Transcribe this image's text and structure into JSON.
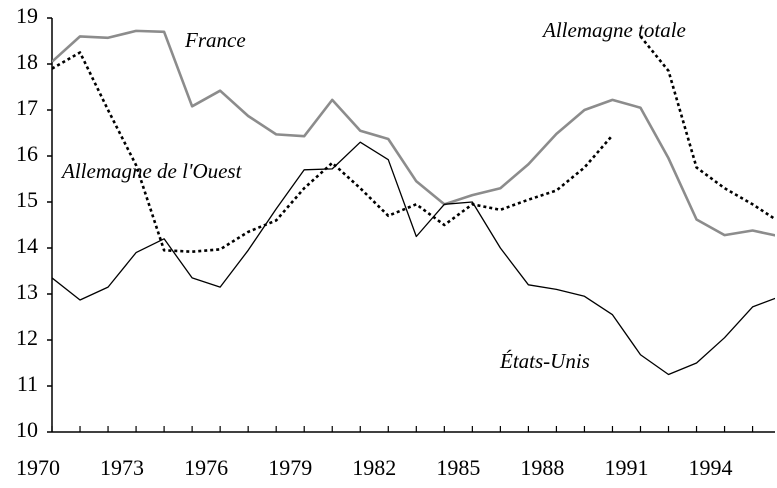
{
  "chart_data": {
    "type": "line",
    "x": [
      1970,
      1971,
      1972,
      1973,
      1974,
      1975,
      1976,
      1977,
      1978,
      1979,
      1980,
      1981,
      1982,
      1983,
      1984,
      1985,
      1986,
      1987,
      1988,
      1989,
      1990,
      1991,
      1992,
      1993,
      1994,
      1995,
      1996
    ],
    "series": [
      {
        "name": "France",
        "color": "#8c8c8c",
        "style": "solid",
        "values": [
          18.05,
          18.6,
          18.57,
          18.72,
          18.7,
          17.08,
          17.42,
          16.87,
          16.47,
          16.43,
          17.22,
          16.55,
          16.37,
          15.45,
          14.95,
          15.15,
          15.3,
          15.82,
          16.48,
          17.0,
          17.22,
          17.05,
          15.95,
          14.62,
          14.28,
          14.38,
          14.25
        ]
      },
      {
        "name": "Allemagne de l'Ouest",
        "color": "#000000",
        "style": "dotted",
        "values": [
          17.9,
          18.25,
          17.0,
          15.8,
          13.95,
          13.92,
          13.97,
          14.35,
          14.6,
          15.3,
          15.85,
          15.3,
          14.7,
          14.95,
          14.5,
          14.95,
          14.83,
          15.05,
          15.25,
          15.75,
          16.45,
          null,
          null,
          null,
          null,
          null,
          null
        ]
      },
      {
        "name": "Allemagne totale",
        "color": "#000000",
        "style": "dotted",
        "values": [
          null,
          null,
          null,
          null,
          null,
          null,
          null,
          null,
          null,
          null,
          null,
          null,
          null,
          null,
          null,
          null,
          null,
          null,
          null,
          null,
          null,
          18.6,
          17.85,
          15.75,
          15.3,
          14.95,
          14.55
        ]
      },
      {
        "name": "États-Unis",
        "color": "#000000",
        "style": "solid",
        "values": [
          13.35,
          12.87,
          13.15,
          13.9,
          14.2,
          13.35,
          13.15,
          13.95,
          14.85,
          15.7,
          15.72,
          16.3,
          15.92,
          14.25,
          14.95,
          15.0,
          14.0,
          13.2,
          13.1,
          12.95,
          12.55,
          11.68,
          11.25,
          11.5,
          12.05,
          12.72,
          12.95
        ]
      }
    ],
    "xlim": [
      1970,
      1995.8
    ],
    "xticks": [
      1970,
      1973,
      1976,
      1979,
      1982,
      1985,
      1988,
      1991,
      1994
    ],
    "ylim": [
      10,
      19
    ],
    "yticks": [
      10,
      11,
      12,
      13,
      14,
      15,
      16,
      17,
      18,
      19
    ]
  }
}
